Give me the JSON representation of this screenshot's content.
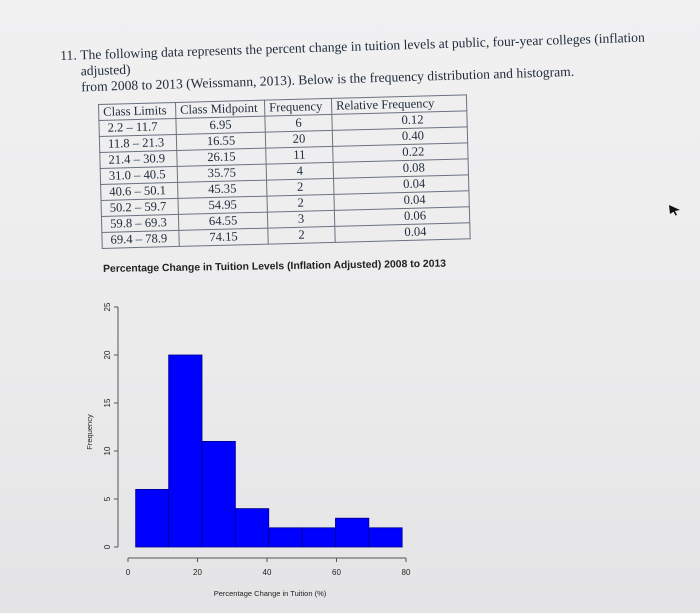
{
  "problem": {
    "number": "11.",
    "line1": "The following data represents the percent change in tuition levels at public, four-year colleges (inflation adjusted)",
    "line2": "from 2008 to 2013 (Weissmann, 2013). Below is the frequency distribution and histogram."
  },
  "table": {
    "headers": [
      "Class Limits",
      "Class Midpoint",
      "Frequency",
      "Relative Frequency"
    ],
    "rows": [
      [
        "2.2 – 11.7",
        "6.95",
        "6",
        "0.12"
      ],
      [
        "11.8 – 21.3",
        "16.55",
        "20",
        "0.40"
      ],
      [
        "21.4 – 30.9",
        "26.15",
        "11",
        "0.22"
      ],
      [
        "31.0 – 40.5",
        "35.75",
        "4",
        "0.08"
      ],
      [
        "40.6 – 50.1",
        "45.35",
        "2",
        "0.04"
      ],
      [
        "50.2 – 59.7",
        "54.95",
        "2",
        "0.04"
      ],
      [
        "59.8 – 69.3",
        "64.55",
        "3",
        "0.06"
      ],
      [
        "69.4 – 78.9",
        "74.15",
        "2",
        "0.04"
      ]
    ]
  },
  "chart_data": {
    "type": "bar",
    "title": "Percentage Change in Tuition Levels (Inflation Adjusted) 2008 to 2013",
    "xlabel": "Percentage Change in Tuition (%)",
    "ylabel": "Frequency",
    "bins": [
      {
        "from": 2.2,
        "to": 11.7,
        "value": 6
      },
      {
        "from": 11.7,
        "to": 21.3,
        "value": 20
      },
      {
        "from": 21.3,
        "to": 30.9,
        "value": 11
      },
      {
        "from": 30.9,
        "to": 40.5,
        "value": 4
      },
      {
        "from": 40.5,
        "to": 50.1,
        "value": 2
      },
      {
        "from": 50.1,
        "to": 59.7,
        "value": 2
      },
      {
        "from": 59.7,
        "to": 69.3,
        "value": 3
      },
      {
        "from": 69.3,
        "to": 78.9,
        "value": 2
      }
    ],
    "xlim": [
      0,
      80
    ],
    "ylim": [
      0,
      25
    ],
    "xticks": [
      "0",
      "20",
      "40",
      "60",
      "80"
    ],
    "yticks": [
      "0",
      "5",
      "10",
      "15",
      "20",
      "25"
    ],
    "bar_color": "#0000ff",
    "grid": false
  },
  "icons": {
    "cursor": "pointer-arrow-icon"
  }
}
